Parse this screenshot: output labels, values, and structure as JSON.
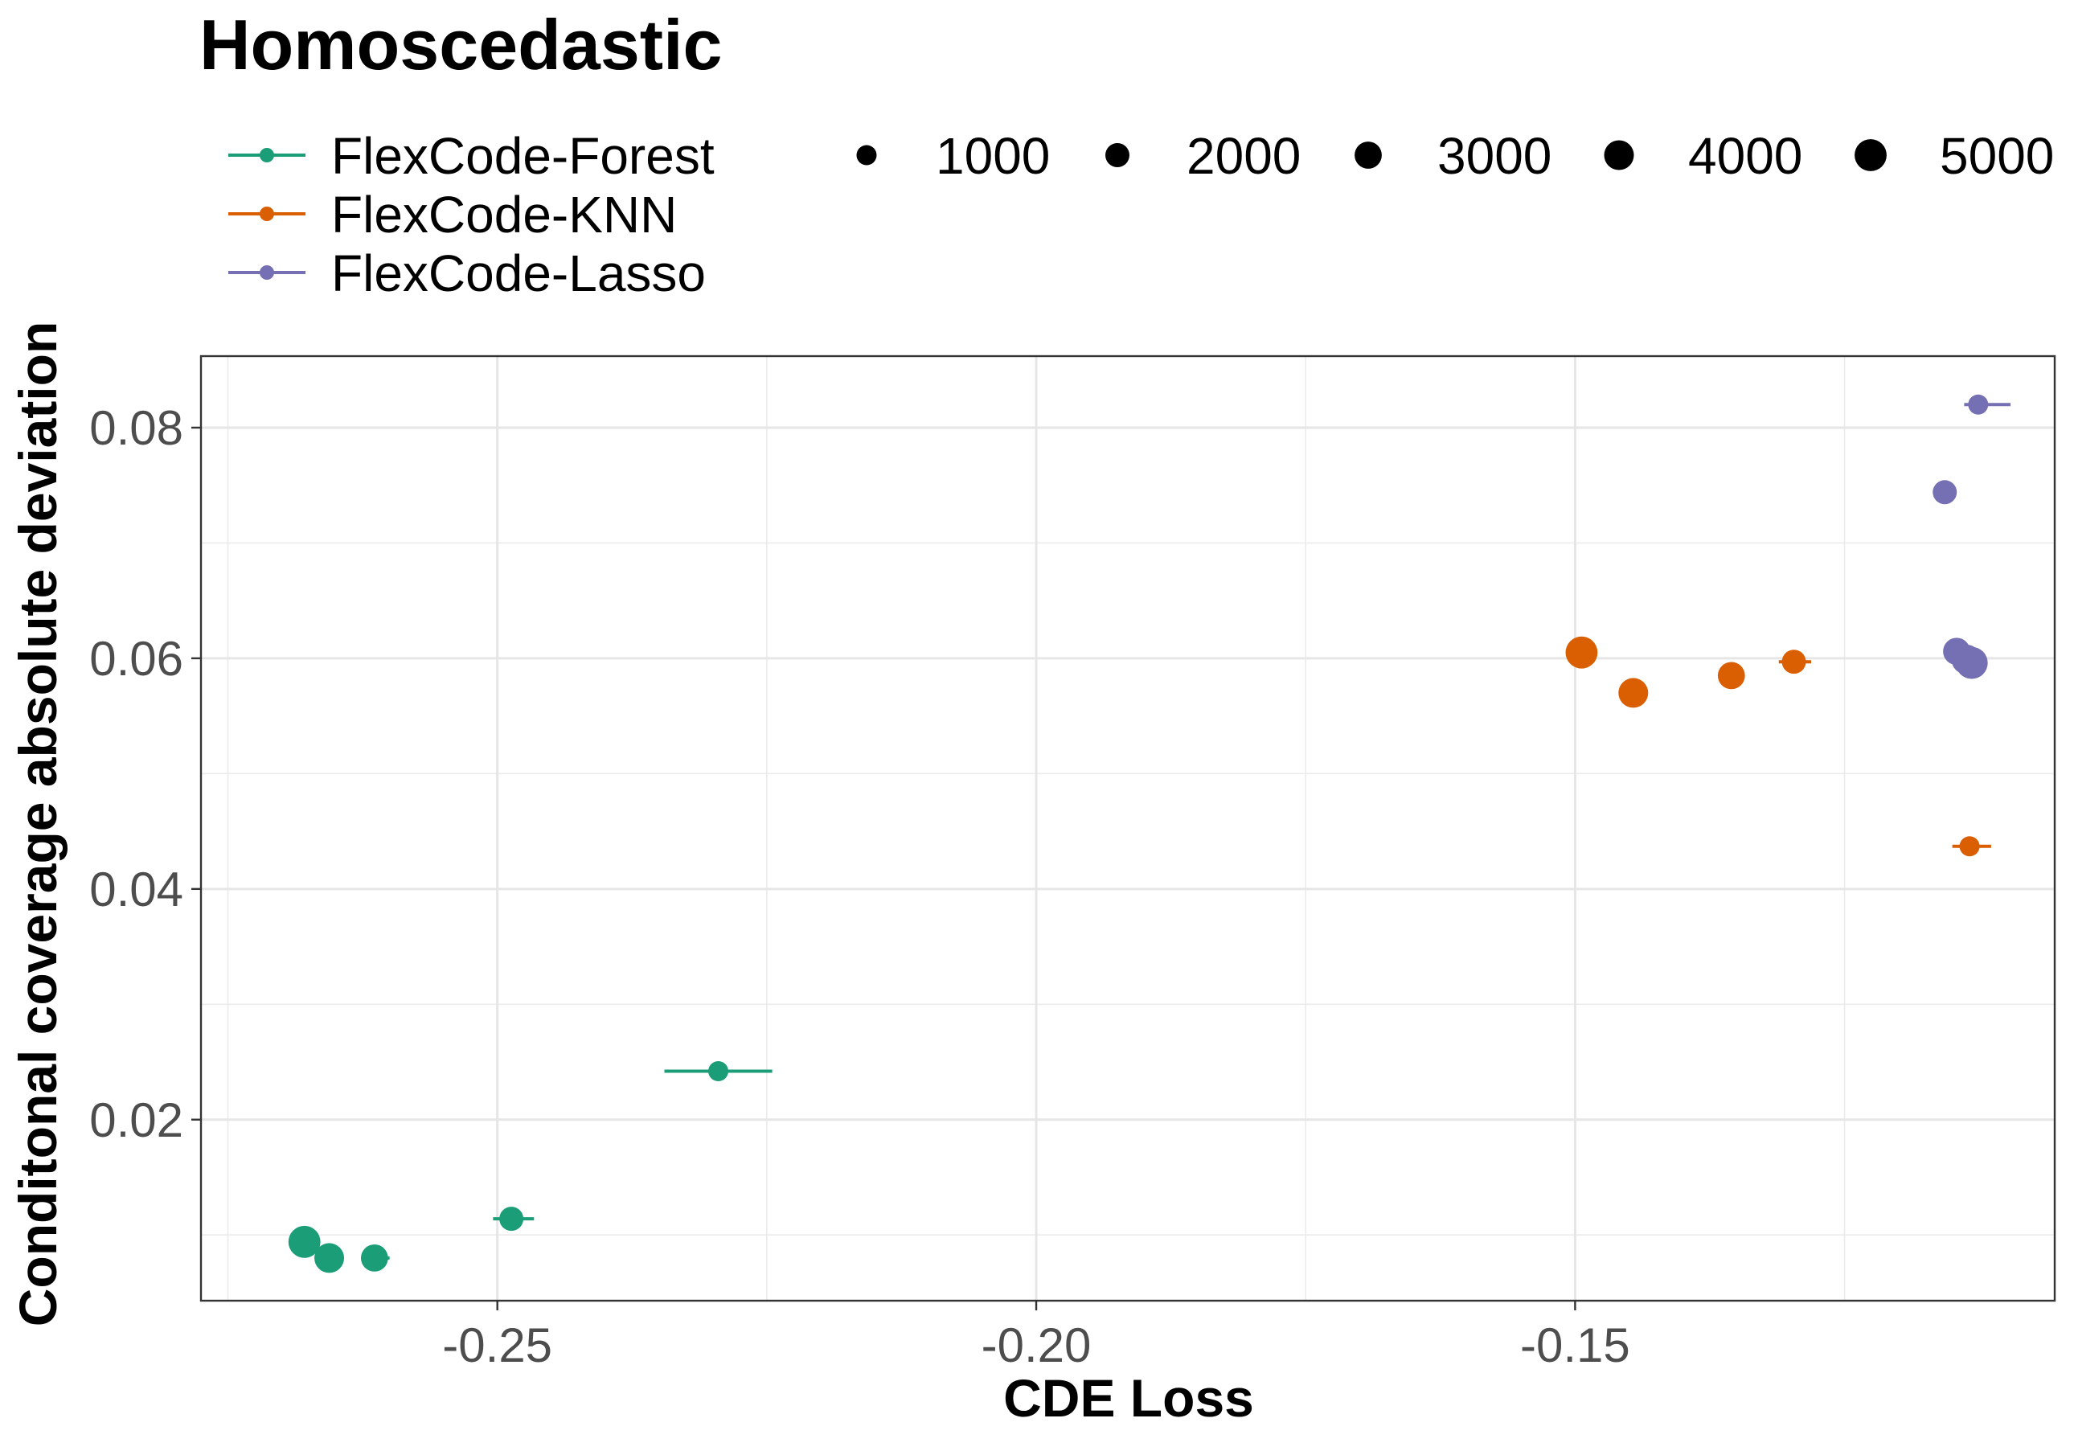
{
  "chart_data": {
    "type": "scatter",
    "title": "Homoscedastic",
    "xlabel": "CDE Loss",
    "ylabel": "Conditonal coverage absolute deviation",
    "xlim": [
      -0.2775,
      -0.1055
    ],
    "ylim": [
      0.0043,
      0.0862
    ],
    "x_ticks": [
      -0.25,
      -0.2,
      -0.15
    ],
    "x_tick_labels": [
      "-0.25",
      "-0.20",
      "-0.15"
    ],
    "y_ticks": [
      0.02,
      0.04,
      0.06,
      0.08
    ],
    "y_tick_labels": [
      "0.02",
      "0.04",
      "0.06",
      "0.08"
    ],
    "grid": true,
    "legend_position": "top",
    "size_legend": {
      "values": [
        1000,
        2000,
        3000,
        4000,
        5000
      ],
      "labels": [
        "1000",
        "2000",
        "3000",
        "4000",
        "5000"
      ]
    },
    "series": [
      {
        "name": "FlexCode-Forest",
        "color": "#1b9e77",
        "points": [
          {
            "n": 1000,
            "x": -0.2295,
            "y": 0.0242,
            "xerr_low": -0.2345,
            "xerr_high": -0.2245
          },
          {
            "n": 2000,
            "x": -0.2487,
            "y": 0.0114,
            "xerr_low": -0.2504,
            "xerr_high": -0.2466
          },
          {
            "n": 3000,
            "x": -0.2614,
            "y": 0.008,
            "xerr_low": -0.2626,
            "xerr_high": -0.26
          },
          {
            "n": 4000,
            "x": -0.2656,
            "y": 0.008,
            "xerr_low": -0.2656,
            "xerr_high": -0.2656
          },
          {
            "n": 5000,
            "x": -0.2679,
            "y": 0.0094,
            "xerr_low": -0.2679,
            "xerr_high": -0.2679
          }
        ]
      },
      {
        "name": "FlexCode-KNN",
        "color": "#d95f02",
        "points": [
          {
            "n": 1000,
            "x": -0.1134,
            "y": 0.0437,
            "xerr_low": -0.115,
            "xerr_high": -0.1114
          },
          {
            "n": 2000,
            "x": -0.1297,
            "y": 0.0597,
            "xerr_low": -0.1311,
            "xerr_high": -0.1281
          },
          {
            "n": 3000,
            "x": -0.1355,
            "y": 0.0585,
            "xerr_low": -0.1359,
            "xerr_high": -0.1351
          },
          {
            "n": 4000,
            "x": -0.1446,
            "y": 0.057,
            "xerr_low": -0.1446,
            "xerr_high": -0.1446
          },
          {
            "n": 5000,
            "x": -0.1494,
            "y": 0.0605,
            "xerr_low": -0.1494,
            "xerr_high": -0.1494
          }
        ]
      },
      {
        "name": "FlexCode-Lasso",
        "color": "#7570b3",
        "points": [
          {
            "n": 1000,
            "x": -0.1126,
            "y": 0.082,
            "xerr_low": -0.1139,
            "xerr_high": -0.1096
          },
          {
            "n": 2000,
            "x": -0.1157,
            "y": 0.0744,
            "xerr_low": -0.1157,
            "xerr_high": -0.1157
          },
          {
            "n": 3000,
            "x": -0.1146,
            "y": 0.0606,
            "xerr_low": -0.1146,
            "xerr_high": -0.1146
          },
          {
            "n": 4000,
            "x": -0.1137,
            "y": 0.0599,
            "xerr_low": -0.1137,
            "xerr_high": -0.1137
          },
          {
            "n": 5000,
            "x": -0.1132,
            "y": 0.0596,
            "xerr_low": -0.1132,
            "xerr_high": -0.1132
          }
        ]
      }
    ]
  }
}
